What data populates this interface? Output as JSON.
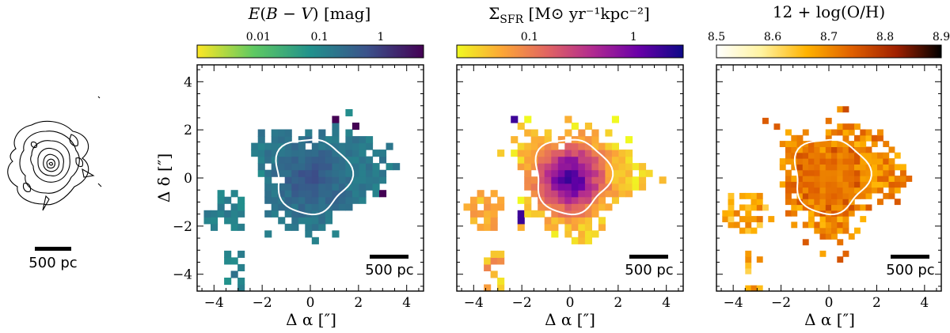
{
  "chart_data": [
    {
      "type": "heatmap",
      "panel": "E(B-V)",
      "colorbar_label": "E(B − V) [mag]",
      "colorbar_scale": "log",
      "colorbar_range": [
        0.001,
        5
      ],
      "colorbar_ticks": [
        "0.01",
        "0.1",
        "1"
      ],
      "colormap": [
        "#fde725",
        "#5ec962",
        "#21918c",
        "#3b528b",
        "#440154"
      ],
      "core_value": 0.5,
      "outer_value": 0.15,
      "knot_value": 0.12,
      "xlabel": "Δ α [″]",
      "ylabel": "Δ δ [″]",
      "xlim": [
        -4.7,
        4.7
      ],
      "ylim": [
        -4.7,
        4.7
      ],
      "xticks": [
        "−4",
        "−2",
        "0",
        "2",
        "4"
      ],
      "yticks": [
        "−4",
        "−2",
        "0",
        "2",
        "4"
      ],
      "scalebar": "500 pc"
    },
    {
      "type": "heatmap",
      "panel": "Sigma_SFR",
      "colorbar_label": "Σ",
      "colorbar_label_sub": "SFR",
      "colorbar_label_unit": "[M⊙ yr⁻¹kpc⁻²]",
      "colorbar_scale": "log",
      "colorbar_range": [
        0.02,
        3
      ],
      "colorbar_ticks": [
        "0.1",
        "1"
      ],
      "colormap": [
        "#f0f921",
        "#fca636",
        "#e16462",
        "#b12a90",
        "#6a00a8",
        "#0d0887"
      ],
      "core_value": 1.5,
      "outer_value": 0.03,
      "knot_value": 0.05,
      "xlabel": "Δ α [″]",
      "xlim": [
        -4.7,
        4.7
      ],
      "ylim": [
        -4.7,
        4.7
      ],
      "xticks": [
        "−4",
        "−2",
        "0",
        "2",
        "4"
      ],
      "scalebar": "500 pc"
    },
    {
      "type": "heatmap",
      "panel": "metallicity",
      "colorbar_label": "12 + log(O/H)",
      "colorbar_scale": "linear",
      "colorbar_range": [
        8.5,
        8.9
      ],
      "colorbar_ticks": [
        "8.5",
        "8.6",
        "8.7",
        "8.8",
        "8.9"
      ],
      "colormap": [
        "#ffffff",
        "#fff3a0",
        "#ffb300",
        "#e06000",
        "#a02000",
        "#000000"
      ],
      "core_value": 8.72,
      "outer_value": 8.72,
      "knot_value": 8.67,
      "xlabel": "Δ α [″]",
      "xlim": [
        -4.7,
        4.7
      ],
      "ylim": [
        -4.7,
        4.7
      ],
      "xticks": [
        "−4",
        "−2",
        "0",
        "2",
        "4"
      ],
      "scalebar": "500 pc"
    }
  ],
  "thumbnail": {
    "name": "contour-map",
    "scalebar": "500 pc"
  }
}
